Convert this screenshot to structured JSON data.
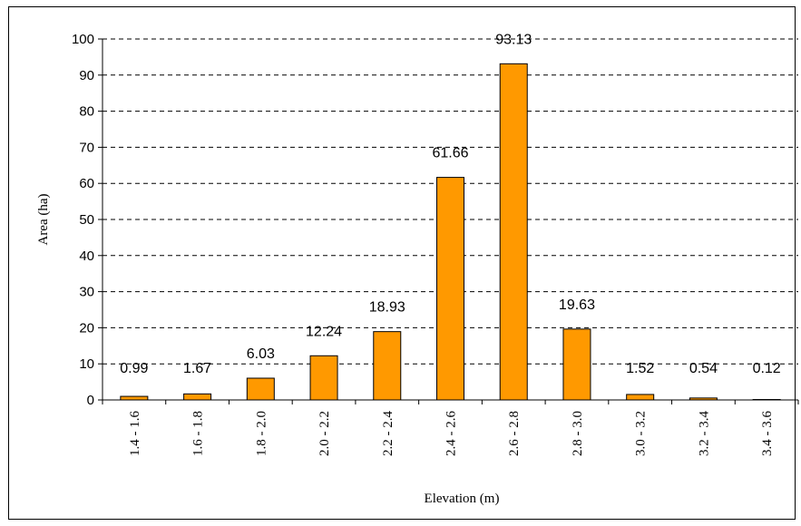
{
  "chart_data": {
    "type": "bar",
    "categories": [
      "1.4 - 1.6",
      "1.6 - 1.8",
      "1.8 - 2.0",
      "2.0 - 2.2",
      "2.2 - 2.4",
      "2.4 - 2.6",
      "2.6 - 2.8",
      "2.8 - 3.0",
      "3.0 - 3.2",
      "3.2 - 3.4",
      "3.4 - 3.6"
    ],
    "values": [
      0.99,
      1.67,
      6.03,
      12.24,
      18.93,
      61.66,
      93.13,
      19.63,
      1.52,
      0.54,
      0.12
    ],
    "data_labels": [
      "0.99",
      "1.67",
      "6.03",
      "12.24",
      "18.93",
      "61.66",
      "93.13",
      "19.63",
      "1.52",
      "0.54",
      "0.12"
    ],
    "title": "",
    "xlabel": "Elevation (m)",
    "ylabel": "Area (ha)",
    "ylim": [
      0,
      100
    ],
    "yticks": [
      "0",
      "10",
      "20",
      "30",
      "40",
      "50",
      "60",
      "70",
      "80",
      "90",
      "100"
    ],
    "grid": "dashed horizontal",
    "bar_color": "#FF9900",
    "bar_edge_color": "#000000"
  }
}
